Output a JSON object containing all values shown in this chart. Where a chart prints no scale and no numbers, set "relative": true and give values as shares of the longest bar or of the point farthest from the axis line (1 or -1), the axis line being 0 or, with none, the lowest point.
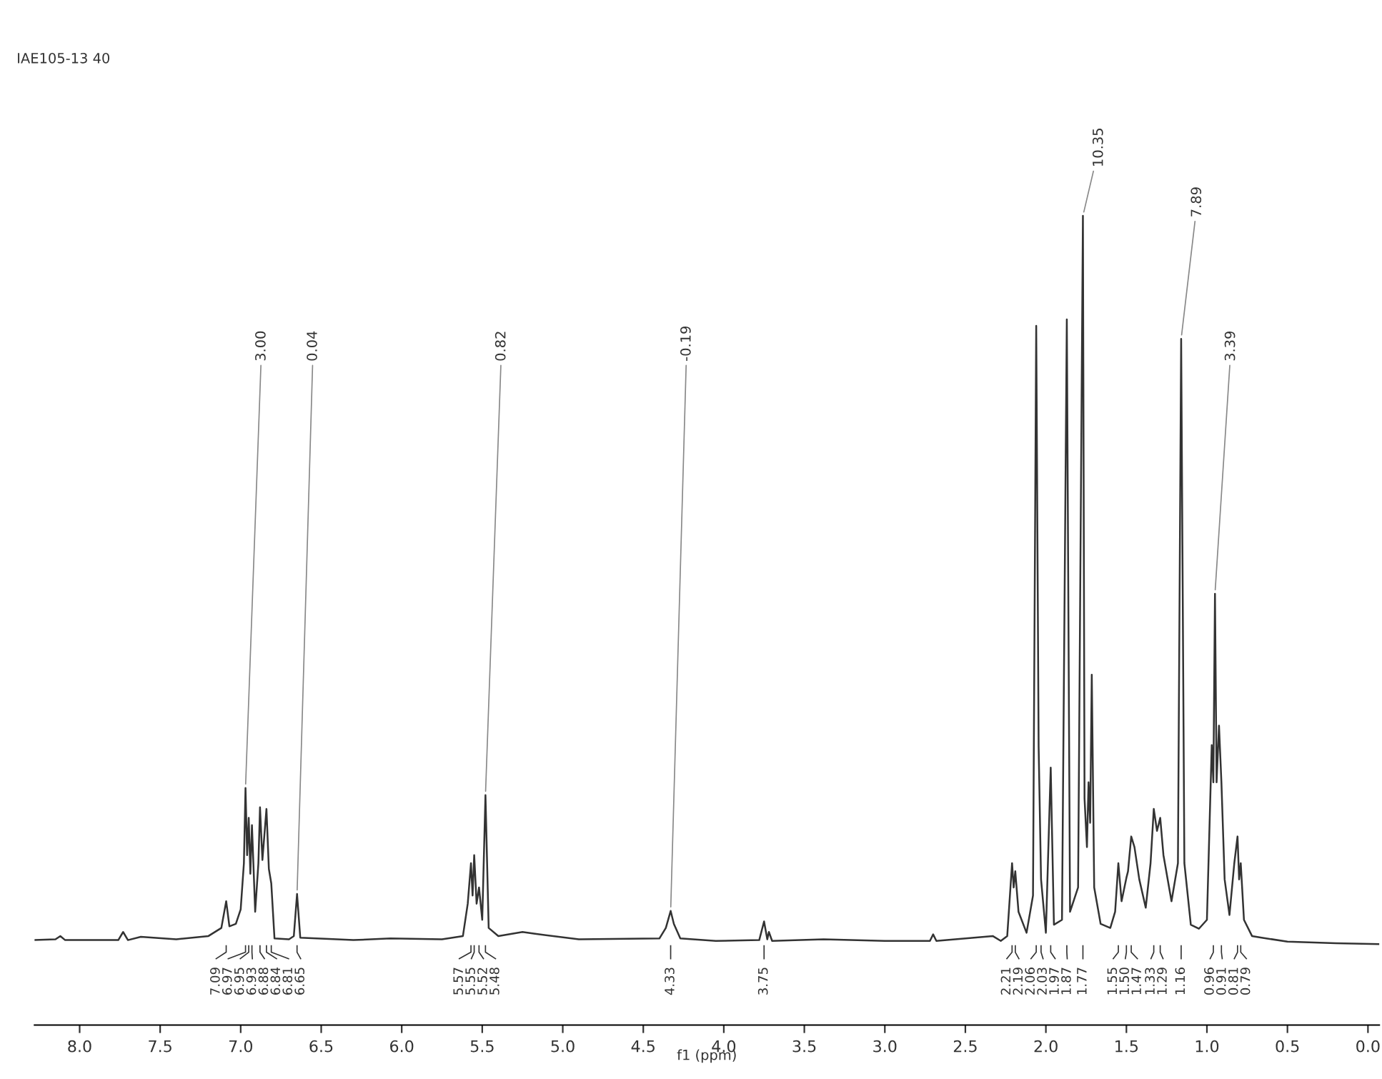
{
  "chart_data": {
    "type": "line",
    "title": "IAE105-13 40",
    "xlabel": "f1 (ppm)",
    "relative": true,
    "grid": false,
    "legend": false,
    "marker": "none",
    "line_style": "solid",
    "xlim": [
      8.28,
      -0.07
    ],
    "xticks": [
      {
        "value": 8,
        "label": "8.0"
      },
      {
        "value": 7.5,
        "label": "7.5"
      },
      {
        "value": 7,
        "label": "7.0"
      },
      {
        "value": 6.5,
        "label": "6.5"
      },
      {
        "value": 6,
        "label": "6.0"
      },
      {
        "value": 5.5,
        "label": "5.5"
      },
      {
        "value": 5,
        "label": "5.0"
      },
      {
        "value": 4.5,
        "label": "4.5"
      },
      {
        "value": 4,
        "label": "4.0"
      },
      {
        "value": 3.5,
        "label": "3.5"
      },
      {
        "value": 3,
        "label": "3.0"
      },
      {
        "value": 2.5,
        "label": "2.5"
      },
      {
        "value": 2,
        "label": "2.0"
      },
      {
        "value": 1.5,
        "label": "1.5"
      },
      {
        "value": 1,
        "label": "1.0"
      },
      {
        "value": 0.5,
        "label": "0.5"
      },
      {
        "value": 0,
        "label": "0.0"
      }
    ],
    "series": [
      {
        "color": "#333333",
        "x": [
          8.28,
          8.15,
          8.12,
          8.09,
          7.76,
          7.73,
          7.7,
          7.62,
          7.4,
          7.2,
          7.12,
          7.09,
          7.07,
          7.03,
          7.0,
          6.98,
          6.97,
          6.96,
          6.95,
          6.94,
          6.93,
          6.91,
          6.89,
          6.88,
          6.865,
          6.84,
          6.825,
          6.81,
          6.79,
          6.7,
          6.67,
          6.65,
          6.63,
          6.3,
          6.07,
          5.75,
          5.62,
          5.59,
          5.57,
          5.56,
          5.55,
          5.535,
          5.52,
          5.5,
          5.48,
          5.46,
          5.4,
          5.25,
          5.18,
          4.9,
          4.4,
          4.36,
          4.33,
          4.31,
          4.27,
          4.05,
          3.78,
          3.75,
          3.73,
          3.72,
          3.7,
          3.38,
          3.0,
          2.72,
          2.7,
          2.68,
          2.33,
          2.28,
          2.24,
          2.21,
          2.2,
          2.19,
          2.17,
          2.12,
          2.08,
          2.06,
          2.045,
          2.03,
          2.0,
          1.97,
          1.95,
          1.9,
          1.87,
          1.85,
          1.8,
          1.77,
          1.76,
          1.745,
          1.735,
          1.725,
          1.715,
          1.7,
          1.66,
          1.6,
          1.57,
          1.55,
          1.53,
          1.5,
          1.49,
          1.47,
          1.45,
          1.42,
          1.38,
          1.35,
          1.33,
          1.31,
          1.29,
          1.27,
          1.22,
          1.18,
          1.16,
          1.14,
          1.1,
          1.05,
          1.0,
          0.97,
          0.96,
          0.95,
          0.94,
          0.925,
          0.91,
          0.89,
          0.86,
          0.83,
          0.81,
          0.8,
          0.79,
          0.77,
          0.72,
          0.66,
          0.5,
          0.2,
          -0.07
        ],
        "values": [
          0.105,
          0.106,
          0.11,
          0.105,
          0.105,
          0.115,
          0.105,
          0.109,
          0.106,
          0.11,
          0.12,
          0.153,
          0.122,
          0.125,
          0.143,
          0.2,
          0.293,
          0.21,
          0.256,
          0.187,
          0.247,
          0.14,
          0.2,
          0.269,
          0.204,
          0.267,
          0.193,
          0.175,
          0.107,
          0.106,
          0.11,
          0.162,
          0.108,
          0.105,
          0.107,
          0.106,
          0.11,
          0.15,
          0.2,
          0.16,
          0.21,
          0.15,
          0.17,
          0.13,
          0.284,
          0.12,
          0.11,
          0.115,
          0.113,
          0.106,
          0.107,
          0.12,
          0.141,
          0.125,
          0.107,
          0.104,
          0.105,
          0.128,
          0.106,
          0.115,
          0.104,
          0.106,
          0.104,
          0.104,
          0.112,
          0.104,
          0.11,
          0.104,
          0.11,
          0.2,
          0.17,
          0.19,
          0.14,
          0.114,
          0.16,
          0.864,
          0.344,
          0.18,
          0.114,
          0.318,
          0.124,
          0.13,
          0.872,
          0.14,
          0.17,
          1.0,
          0.28,
          0.22,
          0.3,
          0.25,
          0.433,
          0.17,
          0.125,
          0.12,
          0.14,
          0.2,
          0.153,
          0.182,
          0.19,
          0.233,
          0.22,
          0.18,
          0.145,
          0.2,
          0.267,
          0.24,
          0.256,
          0.21,
          0.153,
          0.2,
          0.848,
          0.2,
          0.124,
          0.119,
          0.13,
          0.346,
          0.3,
          0.533,
          0.3,
          0.37,
          0.3,
          0.18,
          0.136,
          0.2,
          0.233,
          0.18,
          0.2,
          0.13,
          0.11,
          0.108,
          0.103,
          0.101,
          0.1
        ]
      }
    ],
    "annotations": [
      {
        "text": "3.00",
        "x": 6.97,
        "y": 0.293
      },
      {
        "text": "0.04",
        "x": 6.65,
        "y": 0.162
      },
      {
        "text": "0.82",
        "x": 5.48,
        "y": 0.284
      },
      {
        "text": "-0.19",
        "x": 4.33,
        "y": 0.141
      },
      {
        "text": "10.35",
        "x": 1.77,
        "y": 1.0
      },
      {
        "text": "7.89",
        "x": 1.16,
        "y": 0.848
      },
      {
        "text": "3.39",
        "x": 0.95,
        "y": 0.533
      },
      {
        "text": "7.09",
        "x": 7.09
      },
      {
        "text": "6.97",
        "x": 6.97
      },
      {
        "text": "6.95",
        "x": 6.95
      },
      {
        "text": "6.93",
        "x": 6.93
      },
      {
        "text": "6.88",
        "x": 6.88
      },
      {
        "text": "6.84",
        "x": 6.84
      },
      {
        "text": "6.81",
        "x": 6.81
      },
      {
        "text": "6.65",
        "x": 6.65
      },
      {
        "text": "5.57",
        "x": 5.57
      },
      {
        "text": "5.55",
        "x": 5.55
      },
      {
        "text": "5.52",
        "x": 5.52
      },
      {
        "text": "5.48",
        "x": 5.48
      },
      {
        "text": "4.33",
        "x": 4.33
      },
      {
        "text": "3.75",
        "x": 3.75
      },
      {
        "text": "2.21",
        "x": 2.21
      },
      {
        "text": "2.19",
        "x": 2.19
      },
      {
        "text": "2.06",
        "x": 2.06
      },
      {
        "text": "2.03",
        "x": 2.03
      },
      {
        "text": "1.97",
        "x": 1.97
      },
      {
        "text": "1.87",
        "x": 1.87
      },
      {
        "text": "1.77",
        "x": 1.77
      },
      {
        "text": "1.55",
        "x": 1.55
      },
      {
        "text": "1.50",
        "x": 1.5
      },
      {
        "text": "1.47",
        "x": 1.47
      },
      {
        "text": "1.33",
        "x": 1.33
      },
      {
        "text": "1.29",
        "x": 1.29
      },
      {
        "text": "1.16",
        "x": 1.16
      },
      {
        "text": "0.96",
        "x": 0.96
      },
      {
        "text": "0.91",
        "x": 0.91
      },
      {
        "text": "0.81",
        "x": 0.81
      },
      {
        "text": "0.79",
        "x": 0.79
      }
    ]
  }
}
